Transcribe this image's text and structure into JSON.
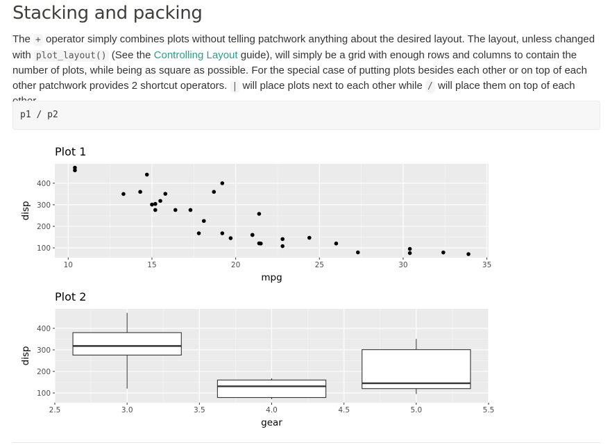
{
  "heading": "Stacking and packing",
  "paragraph": {
    "t1": "The ",
    "op_plus": "+",
    "t2": " operator simply combines plots without telling patchwork anything about the desired layout. The layout, unless changed with ",
    "fn": "plot_layout()",
    "t3": " (See the ",
    "link": "Controlling Layout",
    "t4": " guide), will simply be a grid with enough rows and columns to contain the number of plots, while being as square as possible. For the special case of putting plots besides each other or on top of each other patchwork provides 2 shortcut operators. ",
    "op_pipe": "|",
    "t5": " will place plots next to each other while ",
    "op_slash": "/",
    "t6": " will place them on top of each other."
  },
  "code": "p1 / p2",
  "chart_data": [
    {
      "type": "scatter",
      "title": "Plot 1",
      "xlabel": "mpg",
      "ylabel": "disp",
      "xlim": [
        9.2,
        35.1
      ],
      "ylim": [
        55,
        490
      ],
      "xticks": [
        10,
        15,
        20,
        25,
        30,
        35
      ],
      "yticks": [
        100,
        200,
        300,
        400
      ],
      "grid": true,
      "points": [
        [
          21.0,
          160
        ],
        [
          21.0,
          160
        ],
        [
          22.8,
          108
        ],
        [
          21.4,
          258
        ],
        [
          18.7,
          360
        ],
        [
          18.1,
          225
        ],
        [
          14.3,
          360
        ],
        [
          24.4,
          146.7
        ],
        [
          22.8,
          140.8
        ],
        [
          19.2,
          167.6
        ],
        [
          17.8,
          167.6
        ],
        [
          16.4,
          275.8
        ],
        [
          17.3,
          275.8
        ],
        [
          15.2,
          275.8
        ],
        [
          10.4,
          472
        ],
        [
          10.4,
          460
        ],
        [
          14.7,
          440
        ],
        [
          32.4,
          78.7
        ],
        [
          30.4,
          75.7
        ],
        [
          33.9,
          71.1
        ],
        [
          21.5,
          120.1
        ],
        [
          15.5,
          318
        ],
        [
          15.2,
          304
        ],
        [
          13.3,
          350
        ],
        [
          19.2,
          400
        ],
        [
          27.3,
          79
        ],
        [
          26.0,
          120.3
        ],
        [
          30.4,
          95.1
        ],
        [
          15.8,
          351
        ],
        [
          19.7,
          145
        ],
        [
          15.0,
          301
        ],
        [
          21.4,
          121
        ]
      ]
    },
    {
      "type": "boxplot",
      "title": "Plot 2",
      "xlabel": "gear",
      "ylabel": "disp",
      "xlim": [
        2.5,
        5.5
      ],
      "ylim": [
        55,
        490
      ],
      "xticks": [
        "2.5",
        "3.0",
        "3.5",
        "4.0",
        "4.5",
        "5.0",
        "5.5"
      ],
      "yticks": [
        100,
        200,
        300,
        400
      ],
      "grid": true,
      "boxes": [
        {
          "x": 3,
          "min": 120.1,
          "q1": 275.8,
          "median": 318,
          "q3": 380,
          "max": 472
        },
        {
          "x": 4,
          "min": 71.1,
          "q1": 78.9,
          "median": 130.9,
          "q3": 160,
          "max": 167.6
        },
        {
          "x": 5,
          "min": 95.1,
          "q1": 120.3,
          "median": 145,
          "q3": 301,
          "max": 351
        }
      ]
    }
  ]
}
